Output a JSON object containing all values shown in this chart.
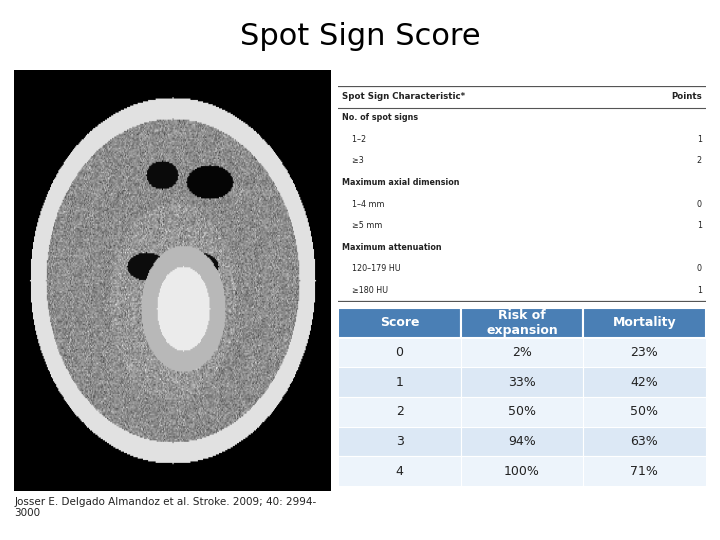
{
  "title": "Spot Sign Score",
  "title_fontsize": 22,
  "title_color": "#000000",
  "background_color": "#ffffff",
  "citation": "Josser E. Delgado Almandoz et al. Stroke. 2009; 40: 2994-\n3000",
  "citation_fontsize": 7.5,
  "upper_table": {
    "headers": [
      "Spot Sign Characteristic*",
      "Points"
    ],
    "rows": [
      [
        "No. of spot signs",
        ""
      ],
      [
        "    1–2",
        "1"
      ],
      [
        "    ≥3",
        "2"
      ],
      [
        "Maximum axial dimension",
        ""
      ],
      [
        "    1–4 mm",
        "0"
      ],
      [
        "    ≥5 mm",
        "1"
      ],
      [
        "Maximum attenuation",
        ""
      ],
      [
        "    120–179 HU",
        "0"
      ],
      [
        "    ≥180 HU",
        "1"
      ]
    ]
  },
  "lower_table": {
    "headers": [
      "Score",
      "Risk of\nexpansion",
      "Mortality"
    ],
    "rows": [
      [
        "0",
        "2%",
        "23%"
      ],
      [
        "1",
        "33%",
        "42%"
      ],
      [
        "2",
        "50%",
        "50%"
      ],
      [
        "3",
        "94%",
        "63%"
      ],
      [
        "4",
        "100%",
        "71%"
      ]
    ],
    "header_bg": "#4a7fb5",
    "header_fg": "#ffffff",
    "row_bg_odd": "#dce8f5",
    "row_bg_even": "#edf4fb",
    "cell_text_color": "#222222",
    "header_fontsize": 9,
    "cell_fontsize": 9
  }
}
